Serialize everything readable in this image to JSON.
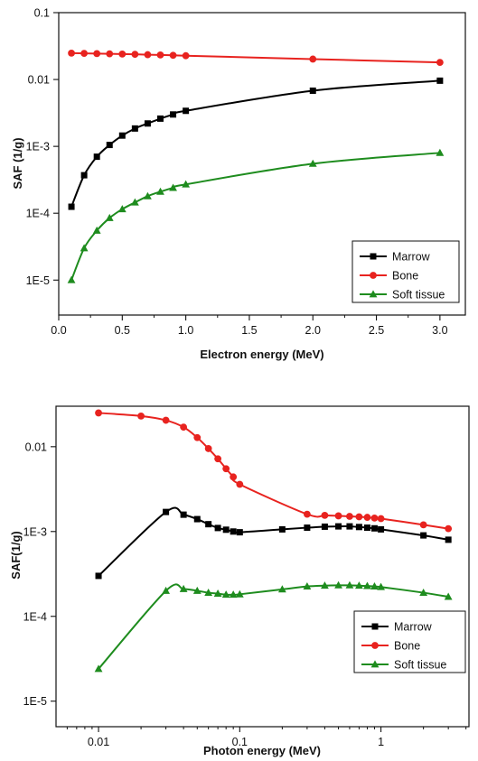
{
  "chart_data": [
    {
      "type": "line",
      "xlabel": "Electron energy (MeV)",
      "ylabel": "SAF (1/g)",
      "xscale": "linear",
      "yscale": "log",
      "xlim": [
        0.0,
        3.2
      ],
      "ylim": [
        3e-06,
        0.1
      ],
      "xticks": [
        0.0,
        0.5,
        1.0,
        1.5,
        2.0,
        2.5,
        3.0
      ],
      "xtick_labels": [
        "0.0",
        "0.5",
        "1.0",
        "1.5",
        "2.0",
        "2.5",
        "3.0"
      ],
      "yticks": [
        1e-05,
        0.0001,
        0.001,
        0.01,
        0.1
      ],
      "ytick_labels": [
        "1E-5",
        "1E-4",
        "1E-3",
        "0.01",
        "0.1"
      ],
      "grid": false,
      "legend_position": "bottom-right",
      "series": [
        {
          "name": "Marrow",
          "color": "#000000",
          "marker": "square",
          "x": [
            0.1,
            0.2,
            0.3,
            0.4,
            0.5,
            0.6,
            0.7,
            0.8,
            0.9,
            1.0,
            2.0,
            3.0
          ],
          "y": [
            0.000125,
            0.00037,
            0.0007,
            0.00105,
            0.00145,
            0.00185,
            0.0022,
            0.0026,
            0.003,
            0.0034,
            0.0068,
            0.0096
          ]
        },
        {
          "name": "Bone",
          "color": "#e8231f",
          "marker": "circle",
          "x": [
            0.1,
            0.2,
            0.3,
            0.4,
            0.5,
            0.6,
            0.7,
            0.8,
            0.9,
            1.0,
            2.0,
            3.0
          ],
          "y": [
            0.0248,
            0.0246,
            0.0244,
            0.0242,
            0.024,
            0.0238,
            0.0235,
            0.0233,
            0.023,
            0.0227,
            0.0202,
            0.018
          ]
        },
        {
          "name": "Soft tissue",
          "color": "#1e8c1e",
          "marker": "triangle",
          "x": [
            0.1,
            0.2,
            0.3,
            0.4,
            0.5,
            0.6,
            0.7,
            0.8,
            0.9,
            1.0,
            2.0,
            3.0
          ],
          "y": [
            1e-05,
            3e-05,
            5.5e-05,
            8.5e-05,
            0.000115,
            0.000145,
            0.00018,
            0.00021,
            0.00024,
            0.00027,
            0.00055,
            0.0008
          ]
        }
      ]
    },
    {
      "type": "line",
      "xlabel": "Photon energy (MeV)",
      "ylabel": "SAF(1/g)",
      "xscale": "log",
      "yscale": "log",
      "xlim": [
        0.005,
        4.2
      ],
      "ylim": [
        5e-06,
        0.03
      ],
      "xticks": [
        0.01,
        0.1,
        1
      ],
      "xtick_labels": [
        "0.01",
        "0.1",
        "1"
      ],
      "yticks": [
        1e-05,
        0.0001,
        0.001,
        0.01
      ],
      "ytick_labels": [
        "1E-5",
        "1E-4",
        "1E-3",
        "0.01"
      ],
      "grid": false,
      "legend_position": "bottom-right",
      "series": [
        {
          "name": "Marrow",
          "color": "#000000",
          "marker": "square",
          "x": [
            0.01,
            0.03,
            0.04,
            0.05,
            0.06,
            0.07,
            0.08,
            0.09,
            0.1,
            0.2,
            0.3,
            0.4,
            0.5,
            0.6,
            0.7,
            0.8,
            0.9,
            1.0,
            2.0,
            3.0
          ],
          "y": [
            0.0003,
            0.0017,
            0.00158,
            0.0014,
            0.00122,
            0.0011,
            0.00105,
            0.001,
            0.00098,
            0.00106,
            0.00111,
            0.00114,
            0.00115,
            0.00115,
            0.00113,
            0.00111,
            0.00109,
            0.00106,
            0.0009,
            0.0008
          ]
        },
        {
          "name": "Bone",
          "color": "#e8231f",
          "marker": "circle",
          "x": [
            0.01,
            0.02,
            0.03,
            0.04,
            0.05,
            0.06,
            0.07,
            0.08,
            0.09,
            0.1,
            0.3,
            0.4,
            0.5,
            0.6,
            0.7,
            0.8,
            0.9,
            1.0,
            2.0,
            3.0
          ],
          "y": [
            0.025,
            0.023,
            0.0205,
            0.017,
            0.0128,
            0.0095,
            0.0072,
            0.0055,
            0.0044,
            0.0036,
            0.0016,
            0.00155,
            0.00153,
            0.00151,
            0.00149,
            0.00147,
            0.00144,
            0.00142,
            0.0012,
            0.00108
          ]
        },
        {
          "name": "Soft tissue",
          "color": "#1e8c1e",
          "marker": "triangle",
          "x": [
            0.01,
            0.03,
            0.04,
            0.05,
            0.06,
            0.07,
            0.08,
            0.09,
            0.1,
            0.2,
            0.3,
            0.4,
            0.5,
            0.6,
            0.7,
            0.8,
            0.9,
            1.0,
            2.0,
            3.0
          ],
          "y": [
            2.4e-05,
            0.0002,
            0.00021,
            0.0002,
            0.00019,
            0.000185,
            0.00018,
            0.00018,
            0.000182,
            0.000208,
            0.000225,
            0.00023,
            0.000232,
            0.000232,
            0.00023,
            0.000228,
            0.000225,
            0.000222,
            0.00019,
            0.00017
          ]
        }
      ]
    }
  ]
}
